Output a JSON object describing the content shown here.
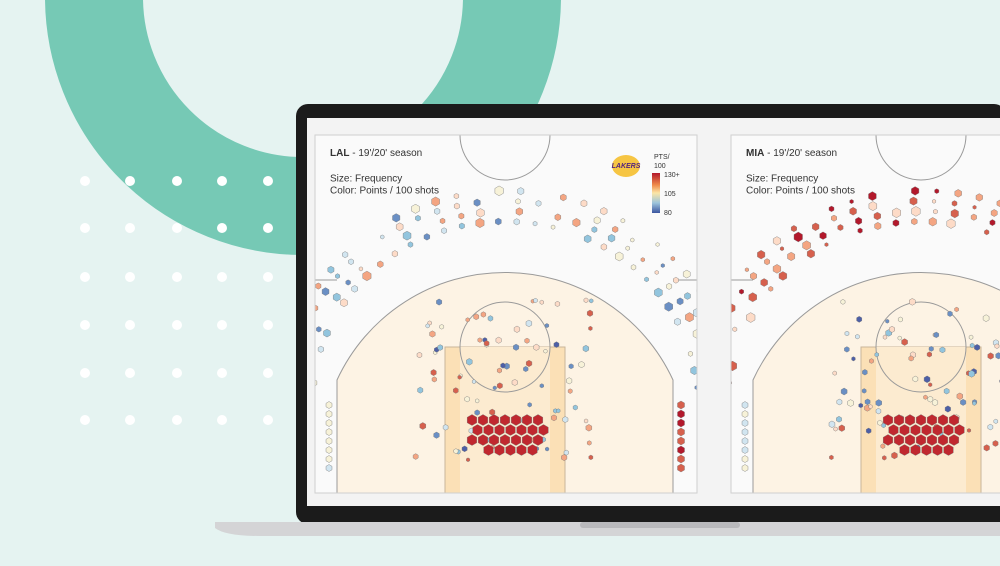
{
  "panels": [
    {
      "team": "LAL",
      "season": " - 19'/20' season",
      "size_note": "Size: Frequency",
      "color_note": "Color: Points / 100 shots"
    },
    {
      "team": "MIA",
      "season": " - 19'/20' season",
      "size_note": "Size: Frequency",
      "color_note": "Color: Points / 100 shots"
    }
  ],
  "logo": "LAKERS",
  "legend": {
    "title_line1": "PTS/",
    "title_line2": "100",
    "ticks": [
      "130+",
      "105",
      "80"
    ]
  }
}
